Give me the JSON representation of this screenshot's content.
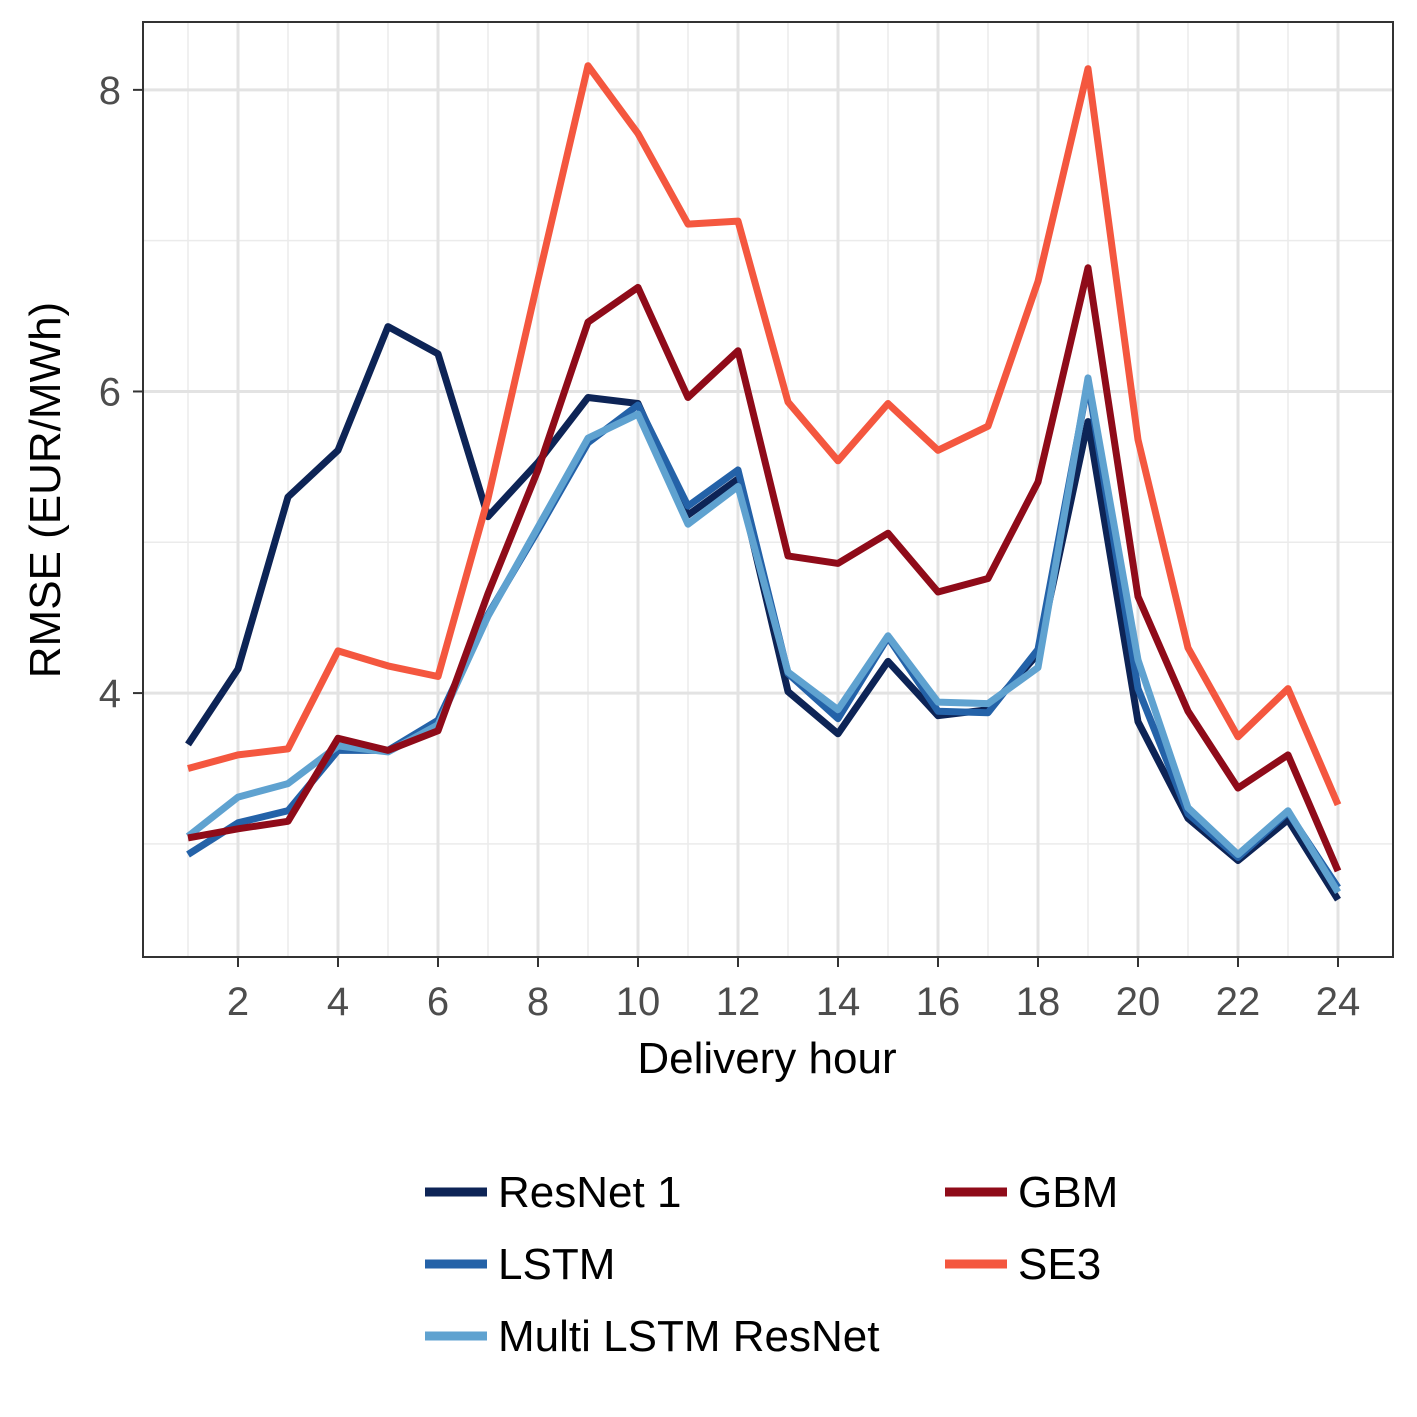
{
  "chart_data": {
    "type": "line",
    "title": "",
    "xlabel": "Delivery hour",
    "ylabel": "RMSE (EUR/MWh)",
    "x": [
      1,
      2,
      3,
      4,
      5,
      6,
      7,
      8,
      9,
      10,
      11,
      12,
      13,
      14,
      15,
      16,
      17,
      18,
      19,
      20,
      21,
      22,
      23,
      24
    ],
    "xlim": [
      0.1,
      25.1
    ],
    "ylim": [
      2.25,
      8.45
    ],
    "x_ticks": [
      2,
      4,
      6,
      8,
      10,
      12,
      14,
      16,
      18,
      20,
      22,
      24
    ],
    "y_ticks": [
      4,
      6,
      8
    ],
    "x_tick_labels": [
      "2",
      "4",
      "6",
      "8",
      "10",
      "12",
      "14",
      "16",
      "18",
      "20",
      "22",
      "24"
    ],
    "y_tick_labels": [
      "4",
      "6",
      "8"
    ],
    "grid": true,
    "legend_position": "bottom",
    "series": [
      {
        "name": "ResNet 1",
        "color": "#0d2456",
        "values": [
          3.66,
          4.16,
          5.3,
          5.61,
          6.43,
          6.25,
          5.17,
          5.53,
          5.96,
          5.92,
          5.18,
          5.42,
          4.01,
          3.73,
          4.21,
          3.85,
          3.89,
          4.26,
          5.8,
          3.81,
          3.17,
          2.89,
          3.16,
          2.63
        ]
      },
      {
        "name": "LSTM",
        "color": "#2462a8",
        "values": [
          2.93,
          3.14,
          3.22,
          3.62,
          3.62,
          3.82,
          4.52,
          5.08,
          5.66,
          5.91,
          5.24,
          5.48,
          4.13,
          3.83,
          4.37,
          3.88,
          3.87,
          4.29,
          6.06,
          4.03,
          3.2,
          2.91,
          3.21,
          2.71
        ]
      },
      {
        "name": "Multi LSTM ResNet",
        "color": "#5fa2d0",
        "values": [
          3.05,
          3.31,
          3.4,
          3.65,
          3.61,
          3.79,
          4.51,
          5.1,
          5.69,
          5.85,
          5.12,
          5.37,
          4.14,
          3.89,
          4.38,
          3.94,
          3.93,
          4.17,
          6.09,
          4.22,
          3.24,
          2.93,
          3.22,
          2.68
        ]
      },
      {
        "name": "GBM",
        "color": "#8f0b19",
        "values": [
          3.04,
          3.1,
          3.15,
          3.7,
          3.62,
          3.75,
          4.66,
          5.48,
          6.46,
          6.69,
          5.96,
          6.27,
          4.91,
          4.86,
          5.06,
          4.67,
          4.76,
          5.4,
          6.82,
          4.64,
          3.88,
          3.37,
          3.59,
          2.82
        ]
      },
      {
        "name": "SE3",
        "color": "#f4573f",
        "values": [
          3.5,
          3.59,
          3.63,
          4.28,
          4.18,
          4.11,
          5.29,
          6.74,
          8.16,
          7.71,
          7.11,
          7.13,
          5.93,
          5.54,
          5.92,
          5.61,
          5.77,
          6.73,
          8.14,
          5.68,
          4.3,
          3.71,
          4.03,
          3.26
        ]
      }
    ]
  }
}
